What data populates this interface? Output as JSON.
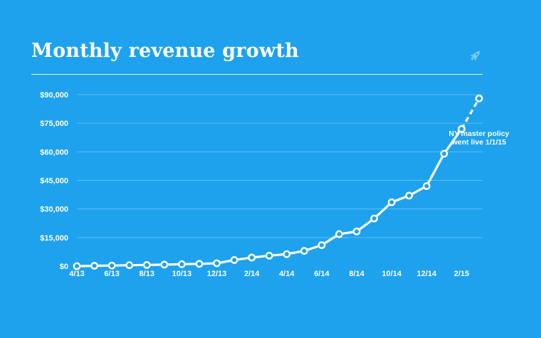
{
  "colors": {
    "background": "#1ea2ee",
    "foreground": "#ffffff",
    "grid": "#5cbdf4"
  },
  "header": {
    "title": "Monthly revenue growth",
    "icon": "rocket-icon"
  },
  "chart_data": {
    "type": "line",
    "title": "Monthly revenue growth",
    "xlabel": "",
    "ylabel": "",
    "ylim": [
      0,
      90000
    ],
    "grid": true,
    "y_ticks": [
      "$0",
      "$15,000",
      "$30,000",
      "$45,000",
      "$60,000",
      "$75,000",
      "$90,000"
    ],
    "x_tick_labels": [
      "4/13",
      "6/13",
      "8/13",
      "10/13",
      "12/13",
      "2/14",
      "4/14",
      "6/14",
      "8/14",
      "10/14",
      "12/14",
      "2/15"
    ],
    "categories": [
      "4/13",
      "5/13",
      "6/13",
      "7/13",
      "8/13",
      "9/13",
      "10/13",
      "11/13",
      "12/13",
      "1/14",
      "2/14",
      "3/14",
      "4/14",
      "5/14",
      "6/14",
      "7/14",
      "8/14",
      "9/14",
      "10/14",
      "11/14",
      "12/14",
      "1/15",
      "2/15",
      "3/15"
    ],
    "series": [
      {
        "values": [
          0,
          200,
          300,
          500,
          600,
          800,
          1000,
          1200,
          1500,
          3200,
          4500,
          5500,
          6300,
          8000,
          11000,
          16800,
          18200,
          25000,
          33500,
          37000,
          42000,
          59000,
          72000,
          88000
        ],
        "projected_last": true
      }
    ],
    "annotations": [
      {
        "text_lines": [
          "NY master policy",
          "went live 1/1/15"
        ],
        "anchor": "1/15"
      }
    ]
  }
}
